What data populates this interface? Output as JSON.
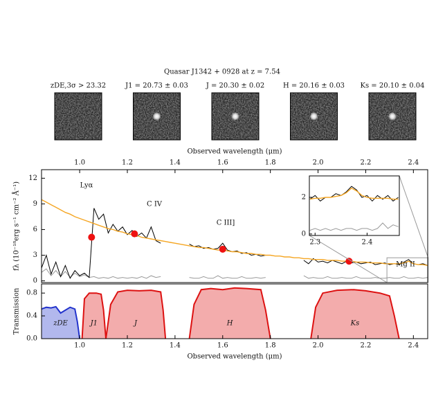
{
  "title": "Quasar J1342 + 0928 at z = 7.54",
  "stamps": [
    {
      "label": "zDE,3σ > 23.32",
      "source": false
    },
    {
      "label": "J1 = 20.73 ± 0.03",
      "source": true
    },
    {
      "label": "J = 20.30 ± 0.02",
      "source": true
    },
    {
      "label": "H = 20.16 ± 0.03",
      "source": true
    },
    {
      "label": "Ks = 20.10 ± 0.04",
      "source": true
    }
  ],
  "chart_data": [
    {
      "type": "line",
      "xlabel": "Observed wavelength (μm)",
      "ylabel": "fλ (10⁻¹⁸erg s⁻¹ cm⁻² Å⁻¹)",
      "xlim": [
        0.84,
        2.46
      ],
      "ylim": [
        -0.2,
        13
      ],
      "xticks": [
        {
          "value": 1,
          "label": "1.0"
        },
        1.2,
        1.4,
        1.6,
        1.8,
        {
          "value": 2,
          "label": "2.0"
        },
        2.2,
        2.4
      ],
      "yticks": [
        0,
        3,
        6,
        9,
        12
      ],
      "annotations": [
        "Lyα",
        "C IV",
        "C III]",
        "Mg II"
      ],
      "x": [
        0.84,
        0.86,
        0.88,
        0.9,
        0.92,
        0.94,
        0.96,
        0.98,
        1.0,
        1.02,
        1.04,
        1.06,
        1.08,
        1.1,
        1.12,
        1.14,
        1.16,
        1.18,
        1.2,
        1.22,
        1.24,
        1.26,
        1.28,
        1.3,
        1.32,
        1.34,
        1.36,
        1.38,
        1.4,
        1.42,
        1.44,
        1.46,
        1.48,
        1.5,
        1.52,
        1.54,
        1.56,
        1.58,
        1.6,
        1.62,
        1.64,
        1.66,
        1.68,
        1.7,
        1.72,
        1.74,
        1.76,
        1.78,
        1.8,
        1.82,
        1.84,
        1.86,
        1.88,
        1.9,
        1.92,
        1.94,
        1.96,
        1.98,
        2.0,
        2.02,
        2.04,
        2.06,
        2.08,
        2.1,
        2.12,
        2.14,
        2.16,
        2.18,
        2.2,
        2.22,
        2.24,
        2.26,
        2.28,
        2.3,
        2.32,
        2.34,
        2.36,
        2.38,
        2.4,
        2.42,
        2.44,
        2.46
      ],
      "series": [
        {
          "color": "#999999",
          "values": [
            1.0,
            1.4,
            0.6,
            1.2,
            0.5,
            1.1,
            0.4,
            0.9,
            0.5,
            0.7,
            0.4,
            0.5,
            0.3,
            0.4,
            0.3,
            0.5,
            0.3,
            0.4,
            0.3,
            0.4,
            0.3,
            0.5,
            0.3,
            0.6,
            0.4,
            0.5,
            null,
            null,
            null,
            null,
            null,
            0.4,
            0.3,
            0.3,
            0.5,
            0.3,
            0.3,
            0.6,
            0.3,
            0.4,
            0.3,
            0.3,
            0.5,
            0.3,
            0.3,
            0.4,
            0.3,
            0.4,
            null,
            null,
            null,
            null,
            null,
            null,
            null,
            0.6,
            0.3,
            0.4,
            0.3,
            0.3,
            0.5,
            0.3,
            0.3,
            0.4,
            0.3,
            0.3,
            0.5,
            0.3,
            0.3,
            0.3,
            0.4,
            0.3,
            0.3,
            0.4,
            0.3,
            0.3,
            0.5,
            0.3,
            0.3,
            0.4,
            0.3,
            0.4
          ]
        },
        {
          "color": "#000000",
          "values": [
            1.5,
            3.0,
            0.8,
            2.2,
            0.5,
            1.8,
            0.3,
            1.2,
            0.6,
            0.9,
            0.4,
            8.5,
            7.2,
            7.8,
            5.6,
            6.6,
            5.8,
            6.3,
            5.4,
            5.9,
            5.2,
            5.6,
            5.0,
            6.3,
            4.7,
            4.4,
            null,
            null,
            null,
            null,
            null,
            4.3,
            4.0,
            4.1,
            3.8,
            3.9,
            3.7,
            3.8,
            4.4,
            3.6,
            3.4,
            3.5,
            3.2,
            3.3,
            3.0,
            3.1,
            2.9,
            3.0,
            null,
            null,
            null,
            null,
            null,
            null,
            null,
            2.4,
            2.0,
            2.6,
            2.2,
            2.3,
            2.1,
            2.4,
            2.2,
            2.0,
            2.3,
            2.1,
            2.2,
            2.0,
            2.1,
            2.2,
            1.9,
            2.0,
            2.1,
            1.9,
            2.0,
            1.9,
            2.2,
            2.5,
            2.0,
            1.9,
            2.0,
            1.8
          ]
        },
        {
          "color": "#f5a623",
          "values": [
            9.5,
            9.2,
            8.9,
            8.6,
            8.3,
            8.0,
            7.8,
            7.5,
            7.3,
            7.1,
            6.9,
            6.7,
            6.5,
            6.3,
            6.1,
            6.0,
            5.8,
            5.7,
            5.5,
            5.4,
            5.3,
            5.1,
            5.0,
            4.9,
            4.8,
            4.7,
            4.6,
            4.5,
            4.4,
            4.3,
            4.2,
            4.1,
            4.0,
            3.9,
            3.9,
            3.8,
            3.7,
            3.6,
            3.6,
            3.5,
            3.4,
            3.4,
            3.3,
            3.2,
            3.2,
            3.1,
            3.1,
            3.0,
            3.0,
            2.9,
            2.9,
            2.8,
            2.8,
            2.7,
            2.7,
            2.6,
            2.6,
            2.5,
            2.5,
            2.5,
            2.4,
            2.4,
            2.4,
            2.3,
            2.3,
            2.3,
            2.2,
            2.2,
            2.2,
            2.1,
            2.1,
            2.1,
            2.0,
            2.0,
            2.0,
            2.0,
            2.1,
            2.3,
            2.0,
            1.9,
            1.9,
            1.8
          ]
        }
      ],
      "points": {
        "color": "#ee1111",
        "x": [
          1.05,
          1.23,
          1.6,
          2.13
        ],
        "values": [
          5.1,
          5.5,
          3.7,
          2.3
        ]
      },
      "inset": {
        "xlim": [
          2.289,
          2.462
        ],
        "ylim": [
          -0.08,
          3.17
        ],
        "xticks": [
          2.3,
          2.4
        ],
        "yticks": [
          0,
          2
        ],
        "x": [
          2.29,
          2.3,
          2.31,
          2.32,
          2.33,
          2.34,
          2.35,
          2.36,
          2.37,
          2.38,
          2.39,
          2.4,
          2.41,
          2.42,
          2.43,
          2.44,
          2.45,
          2.46
        ],
        "series": [
          {
            "color": "#999999",
            "values": [
              0.2,
              0.3,
              0.2,
              0.3,
              0.2,
              0.3,
              0.2,
              0.3,
              0.3,
              0.2,
              0.3,
              0.3,
              0.2,
              0.3,
              0.6,
              0.3,
              0.5,
              0.4
            ]
          },
          {
            "color": "#000000",
            "values": [
              1.9,
              2.1,
              1.8,
              2.0,
              2.0,
              2.2,
              2.1,
              2.3,
              2.6,
              2.4,
              2.0,
              2.1,
              1.8,
              2.1,
              1.9,
              2.1,
              1.8,
              2.0
            ]
          },
          {
            "color": "#f5a623",
            "values": [
              1.9,
              1.95,
              1.95,
              2.0,
              2.0,
              2.05,
              2.1,
              2.25,
              2.5,
              2.35,
              2.1,
              2.0,
              1.95,
              1.95,
              1.95,
              1.95,
              1.9,
              1.9
            ]
          }
        ]
      }
    },
    {
      "type": "area",
      "xlabel": "Observed wavelength (μm)",
      "ylabel": "Transmission",
      "xlim": [
        0.84,
        2.46
      ],
      "ylim": [
        0,
        0.96
      ],
      "xticks": [
        {
          "value": 1,
          "label": "1.0"
        },
        1.2,
        1.4,
        1.6,
        1.8,
        {
          "value": 2,
          "label": "2.0"
        },
        2.2,
        2.4
      ],
      "yticks": [
        {
          "value": 0,
          "label": "0.0"
        },
        0.4,
        0.8
      ],
      "series": [
        {
          "name": "zDE",
          "color": "#2233cc",
          "x": [
            0.84,
            0.86,
            0.88,
            0.9,
            0.92,
            0.94,
            0.96,
            0.98,
            0.99,
            1.0
          ],
          "values": [
            0.52,
            0.55,
            0.54,
            0.56,
            0.45,
            0.5,
            0.55,
            0.52,
            0.3,
            0
          ]
        },
        {
          "name": "J1",
          "color": "#dd1111",
          "x": [
            1.01,
            1.02,
            1.04,
            1.07,
            1.09,
            1.1,
            1.11
          ],
          "values": [
            0,
            0.7,
            0.8,
            0.8,
            0.78,
            0.5,
            0
          ]
        },
        {
          "name": "J",
          "color": "#dd1111",
          "x": [
            1.11,
            1.13,
            1.16,
            1.2,
            1.25,
            1.3,
            1.34,
            1.35,
            1.36
          ],
          "values": [
            0,
            0.6,
            0.82,
            0.85,
            0.84,
            0.85,
            0.82,
            0.5,
            0
          ]
        },
        {
          "name": "H",
          "color": "#dd1111",
          "x": [
            1.46,
            1.48,
            1.51,
            1.55,
            1.6,
            1.65,
            1.7,
            1.76,
            1.78,
            1.8
          ],
          "values": [
            0,
            0.6,
            0.86,
            0.88,
            0.86,
            0.89,
            0.88,
            0.86,
            0.5,
            0
          ]
        },
        {
          "name": "Ks",
          "color": "#dd1111",
          "x": [
            1.97,
            1.99,
            2.02,
            2.08,
            2.15,
            2.2,
            2.26,
            2.3,
            2.32,
            2.34
          ],
          "values": [
            0,
            0.55,
            0.8,
            0.85,
            0.86,
            0.84,
            0.8,
            0.75,
            0.4,
            0
          ]
        }
      ]
    }
  ]
}
